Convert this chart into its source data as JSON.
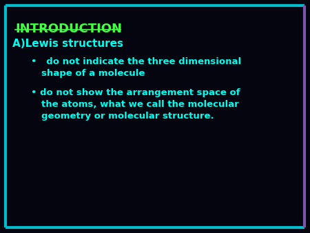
{
  "background_color": "#050510",
  "title": "INTRODUCTION",
  "title_color": "#44ff44",
  "subtitle": "A)Lewis structures",
  "subtitle_color": "#00ffee",
  "text_color": "#00ffee",
  "border_cyan": "#00bbcc",
  "border_purple": "#7755aa",
  "bullet1_line1": " do not indicate the three dimensional",
  "bullet1_line2": "shape of a molecule",
  "bullet2_line1": "do not show the arrangement space of",
  "bullet2_line2": "the atoms, what we call the molecular",
  "bullet2_line3": "geometry or molecular structure.",
  "font_size_title": 13,
  "font_size_subtitle": 11,
  "font_size_body": 9.5
}
